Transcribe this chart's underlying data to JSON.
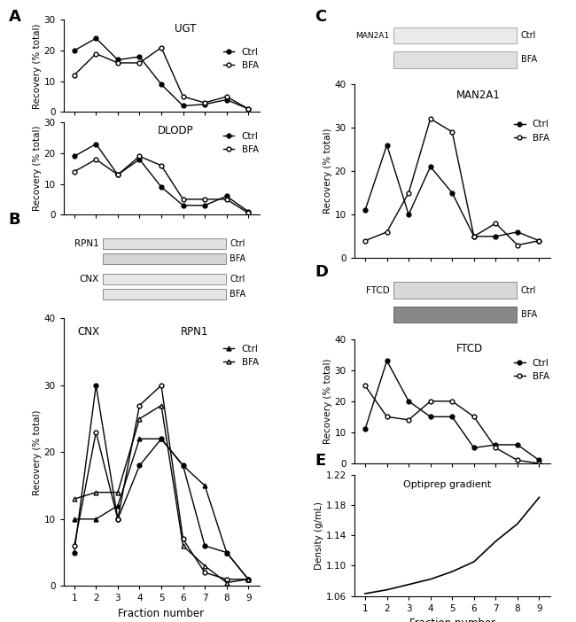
{
  "fractions": [
    1,
    2,
    3,
    4,
    5,
    6,
    7,
    8,
    9
  ],
  "UGT_ctrl": [
    20,
    24,
    17,
    18,
    9,
    2,
    2.5,
    4,
    1
  ],
  "UGT_bfa": [
    12,
    19,
    16,
    16,
    21,
    5,
    3,
    5,
    1
  ],
  "DLODP_ctrl": [
    19,
    23,
    13,
    18,
    9,
    3,
    3,
    6,
    1
  ],
  "DLODP_bfa": [
    14,
    18,
    13,
    19,
    16,
    5,
    5,
    5,
    0.5
  ],
  "MAN2A1_ctrl": [
    11,
    26,
    10,
    21,
    15,
    5,
    5,
    6,
    4
  ],
  "MAN2A1_bfa": [
    4,
    6,
    15,
    32,
    29,
    5,
    8,
    3,
    4
  ],
  "FTCD_ctrl": [
    11,
    33,
    20,
    15,
    15,
    5,
    6,
    6,
    1
  ],
  "FTCD_bfa": [
    25,
    15,
    14,
    20,
    20,
    15,
    5,
    1,
    0
  ],
  "CNX_ctrl": [
    5,
    30,
    10,
    18,
    22,
    18,
    6,
    5,
    1
  ],
  "CNX_bfa": [
    6,
    23,
    10,
    27,
    30,
    7,
    2,
    1,
    1
  ],
  "RPN1_ctrl": [
    10,
    10,
    12,
    22,
    22,
    18,
    15,
    5,
    1
  ],
  "RPN1_bfa": [
    13,
    14,
    14,
    25,
    27,
    6,
    3,
    0.5,
    1
  ],
  "density": [
    1.063,
    1.068,
    1.075,
    1.082,
    1.092,
    1.105,
    1.132,
    1.155,
    1.19
  ]
}
